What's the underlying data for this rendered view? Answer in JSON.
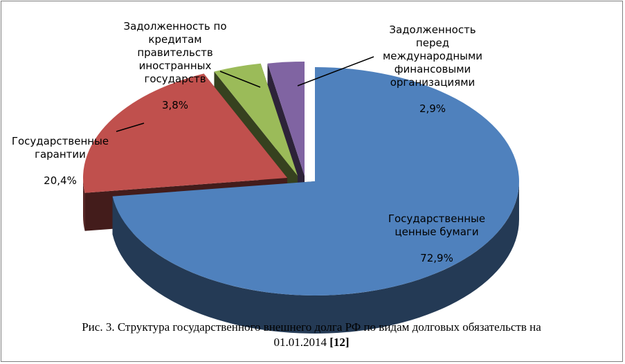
{
  "chart_data": {
    "type": "pie",
    "title": "",
    "slices": [
      {
        "label": "Государственные\nценные бумаги",
        "value": 72.9,
        "value_text": "72,9%",
        "color": "#4f81bd"
      },
      {
        "label": "Государственные\nгарантии",
        "value": 20.4,
        "value_text": "20,4%",
        "color": "#c0504d"
      },
      {
        "label": "Задолженность по\nкредитам\nправительств\nиностранных\nгосударств",
        "value": 3.8,
        "value_text": "3,8%",
        "color": "#9bbb59"
      },
      {
        "label": "Задолженность\nперед\nмеждународными\nфинансовыми\nорганизациями",
        "value": 2.9,
        "value_text": "2,9%",
        "color": "#8064a2"
      }
    ]
  },
  "caption": {
    "text": "Рис. 3. Структура государственного внешнего долга РФ по видам долговых обязательств на 01.01.2014",
    "ref": "[12]"
  }
}
